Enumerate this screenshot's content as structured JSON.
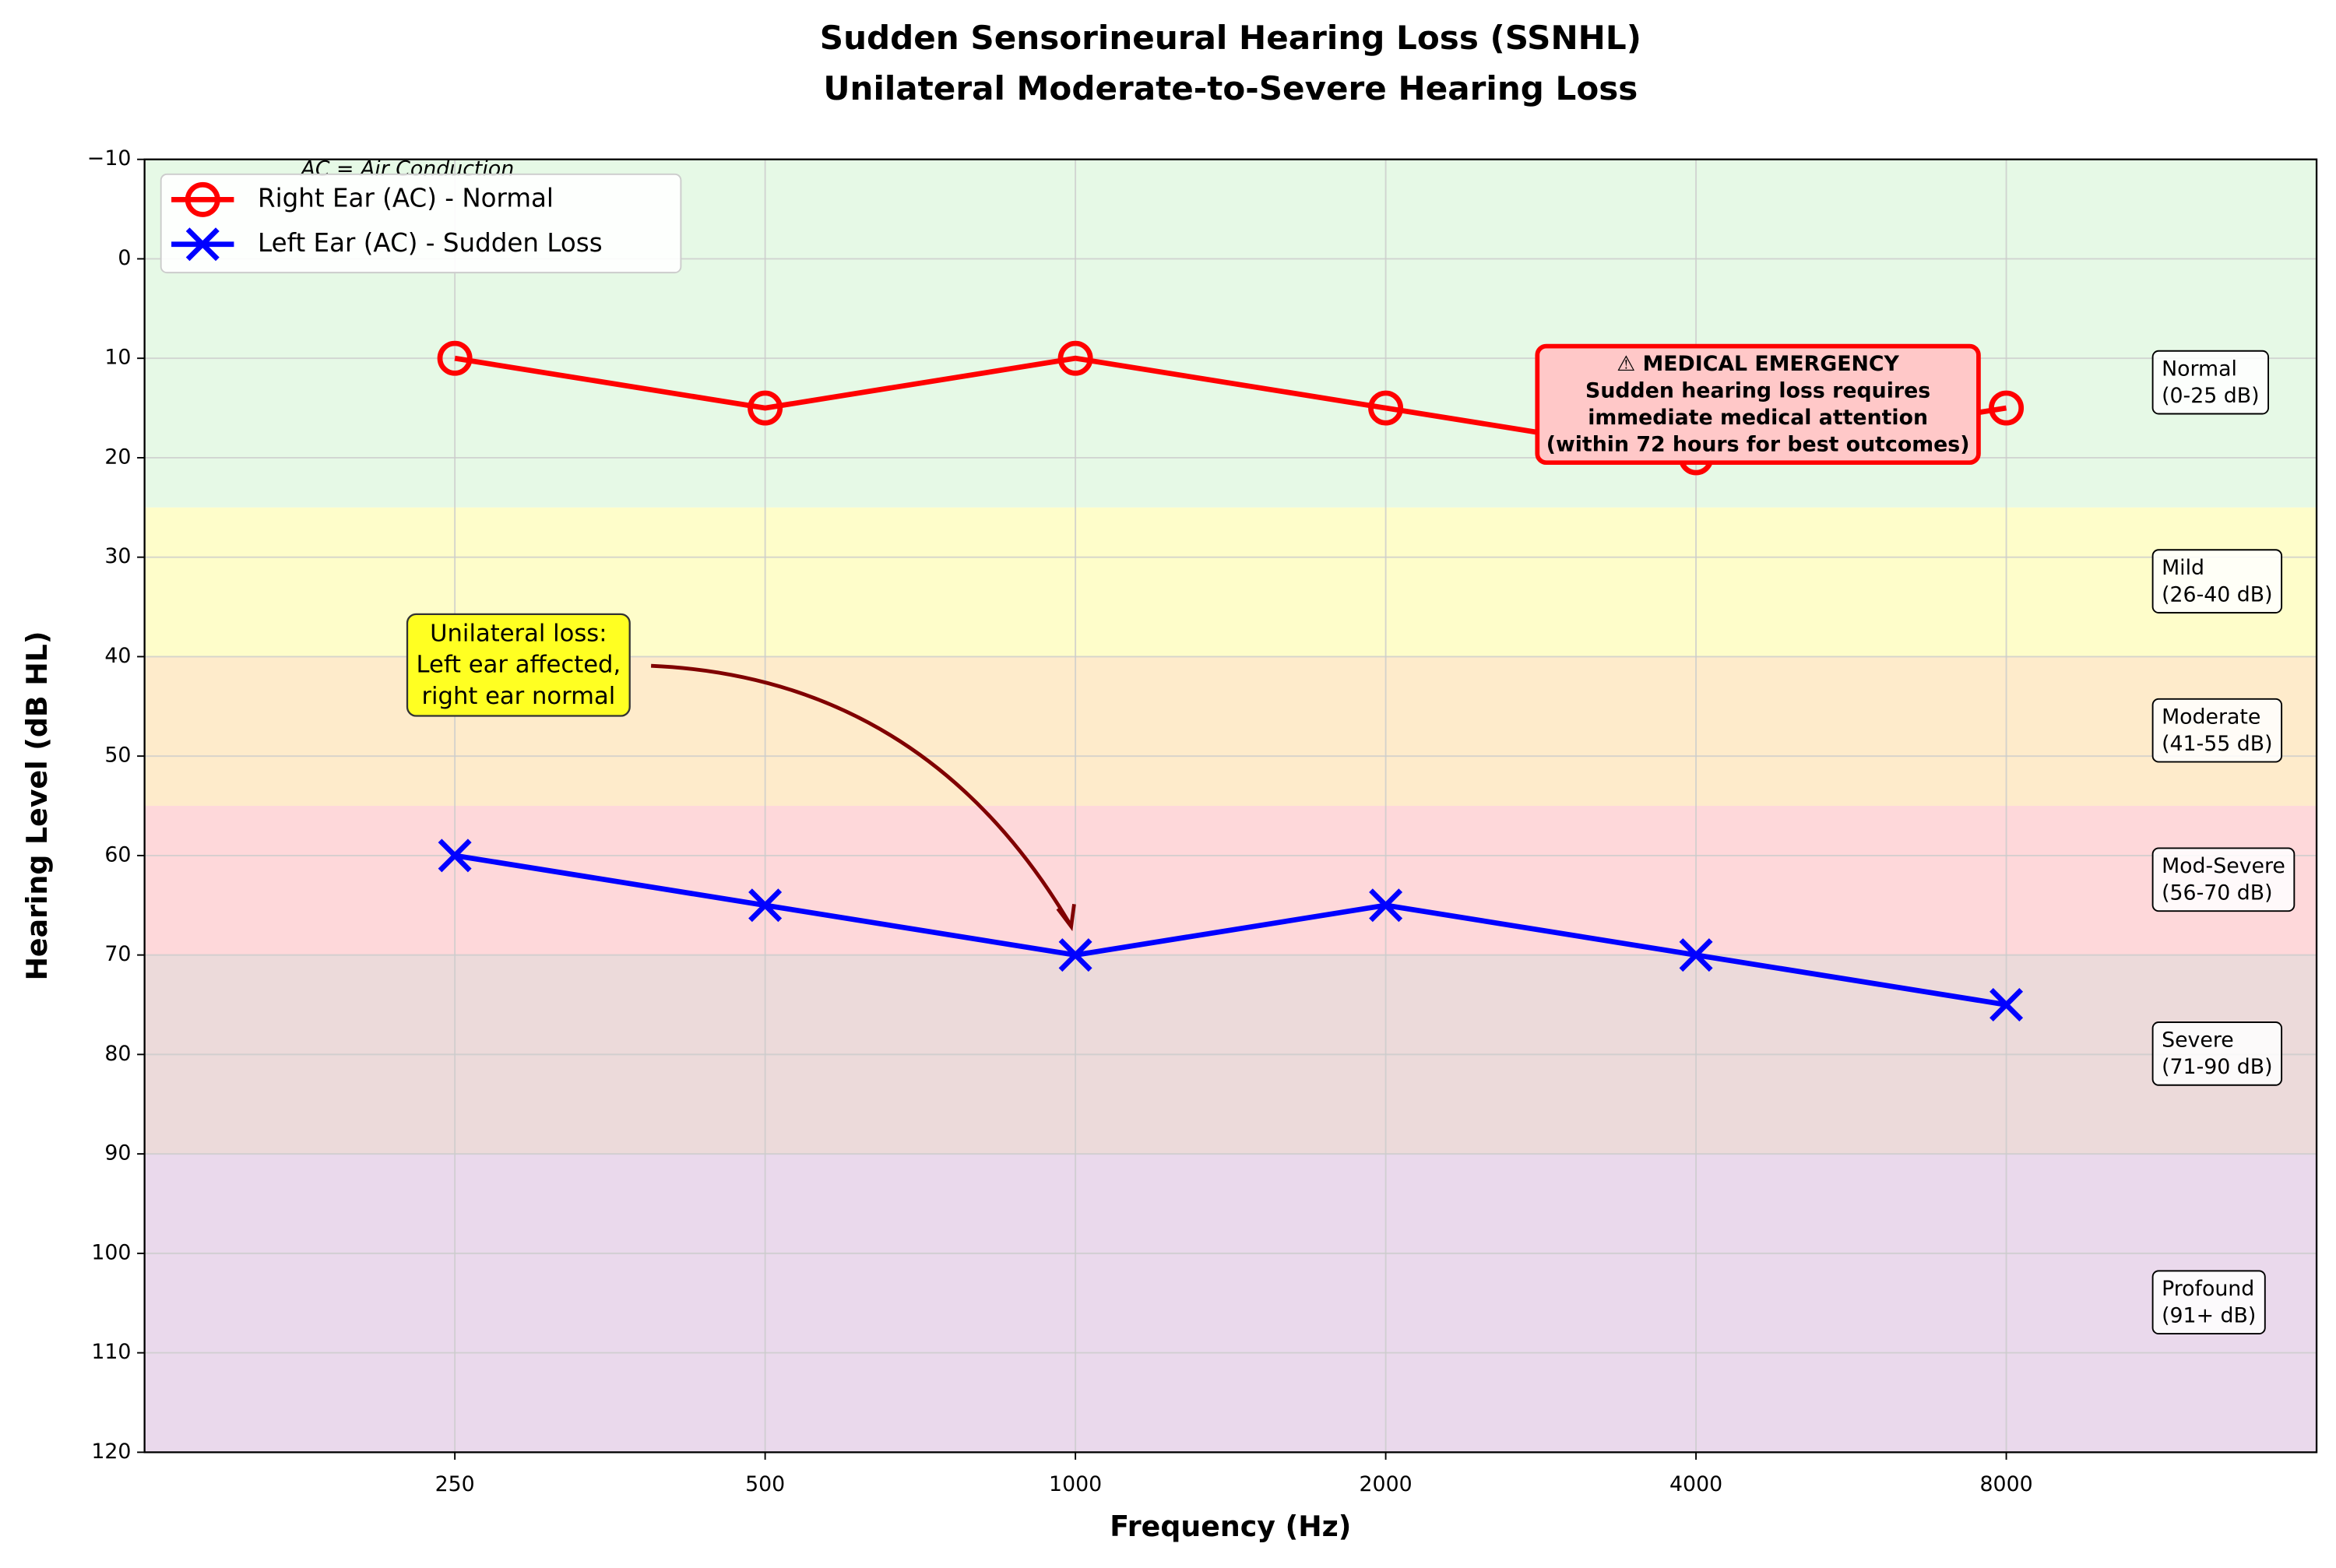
{
  "chart_data": {
    "type": "line",
    "title": [
      "Sudden Sensorineural Hearing Loss (SSNHL)",
      "Unilateral Moderate-to-Severe Hearing Loss"
    ],
    "x_label": "Frequency (Hz)",
    "y_label": "Hearing Level (dB HL)",
    "categories": [
      "250",
      "500",
      "1000",
      "2000",
      "4000",
      "8000"
    ],
    "ylim": [
      120,
      -10
    ],
    "inverted_y": true,
    "yticks": [
      {
        "value": -10,
        "label": "−10"
      },
      0,
      10,
      20,
      30,
      40,
      50,
      60,
      70,
      80,
      90,
      100,
      110,
      120
    ],
    "grid": true,
    "legend": "upper left",
    "series": [
      {
        "name": "Right Ear (AC) - Normal",
        "color": "#ff0000",
        "marker": "o",
        "values": [
          10,
          15,
          10,
          15,
          20,
          15
        ]
      },
      {
        "name": "Left Ear (AC) - Sudden Loss",
        "color": "#0000ff",
        "marker": "x",
        "values": [
          60,
          65,
          70,
          65,
          70,
          75
        ]
      }
    ],
    "bands": [
      {
        "range": [
          -10,
          25
        ],
        "color": "#e6f9e6",
        "lines": [
          "Normal",
          "(0-25 dB)"
        ]
      },
      {
        "range": [
          25,
          40
        ],
        "color": "#fefdca",
        "lines": [
          "Mild",
          "(26-40 dB)"
        ]
      },
      {
        "range": [
          40,
          55
        ],
        "color": "#feebcb",
        "lines": [
          "Moderate",
          "(41-55 dB)"
        ]
      },
      {
        "range": [
          55,
          70
        ],
        "color": "#fed8da",
        "lines": [
          "Mod-Severe",
          "(56-70 dB)"
        ]
      },
      {
        "range": [
          70,
          90
        ],
        "color": "#ecdada",
        "lines": [
          "Severe",
          "(71-90 dB)"
        ]
      },
      {
        "range": [
          90,
          120
        ],
        "color": "#ead9ec",
        "lines": [
          "Profound",
          "(91+ dB)"
        ]
      }
    ],
    "annotations": {
      "note": "AC = Air Conduction",
      "emergency": [
        "⚠ MEDICAL EMERGENCY",
        "Sudden hearing loss requires",
        "immediate medical attention",
        "(within 72 hours for best outcomes)"
      ],
      "unilateral": [
        "Unilateral loss:",
        "Left ear affected,",
        "right ear normal"
      ]
    }
  }
}
